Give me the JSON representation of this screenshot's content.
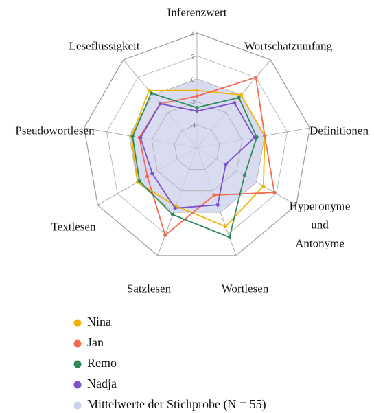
{
  "chart_data": {
    "type": "radar",
    "categories": [
      "Inferenzwert",
      "Wortschatzumfang",
      "Definitionen",
      "Hyperonyme und Antonyme",
      "Wortlesen",
      "Satzlesen",
      "Textlesen",
      "Pseudowortlesen",
      "Leseflüssigkeit"
    ],
    "ylim": [
      -6,
      4
    ],
    "yticks": [
      -4,
      -2,
      0,
      2,
      4
    ],
    "series": [
      {
        "name": "Nina",
        "color": "#f0b400",
        "values": [
          -1,
          0,
          0,
          0.7,
          1.3,
          -0.6,
          0,
          -0.2,
          0.5
        ]
      },
      {
        "name": "Jan",
        "color": "#f4694f",
        "values": [
          -1.5,
          2,
          0,
          1.8,
          -1.6,
          2.1,
          -1,
          -0.9,
          -1
        ]
      },
      {
        "name": "Remo",
        "color": "#2e8b57",
        "values": [
          -2.5,
          -0.3,
          -0.7,
          -1.2,
          2.3,
          0.2,
          -0.2,
          -0.3,
          0.2
        ]
      },
      {
        "name": "Nadja",
        "color": "#7b52c9",
        "values": [
          -2.8,
          -0.9,
          -0.9,
          -3.1,
          -0.7,
          -0.4,
          -1.5,
          -1,
          -1
        ]
      },
      {
        "name": "Mittelwerte der Stichprobe (N = 55)",
        "color": "#cfd2ee",
        "fill": true,
        "values": [
          0,
          0,
          0,
          0,
          0,
          0,
          0,
          0,
          0
        ]
      }
    ]
  }
}
